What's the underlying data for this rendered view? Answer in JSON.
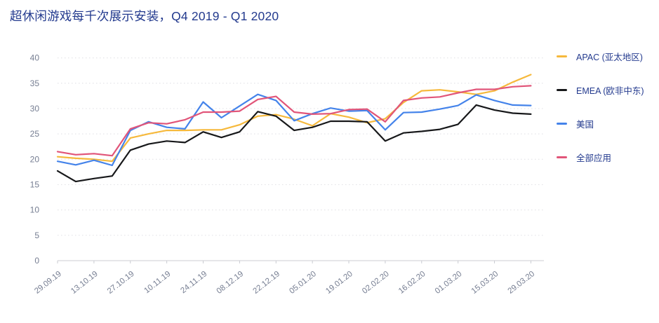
{
  "title": "超休闲游戏每千次展示安装，Q4 2019 - Q1 2020",
  "colors": {
    "title_text": "#233A8E",
    "legend_text": "#233A8E",
    "axis_text": "#767E92",
    "gridline": "#E4E4E8",
    "axis_line": "#D8D8DC"
  },
  "chart_data": {
    "type": "line",
    "title": "超休闲游戏每千次展示安装，Q4 2019 - Q1 2020",
    "x_tick_labels": [
      "29.09.19",
      "13.10.19",
      "27.10.19",
      "10.11.19",
      "24.11.19",
      "08.12.19",
      "22.12.19",
      "05.01.20",
      "19.01.20",
      "02.02.20",
      "16.02.20",
      "01.03.20",
      "15.03.20",
      "29.03.20"
    ],
    "points_per_tick": 2,
    "ylim": [
      0,
      40
    ],
    "y_tick_step": 5,
    "grid": "horizontal-dotted",
    "legend_position": "right",
    "series": [
      {
        "key": "apac",
        "name": "APAC (亚太地区)",
        "color": "#F6B93C",
        "values": [
          20.5,
          20.2,
          20.0,
          19.6,
          24.2,
          25.0,
          25.7,
          25.7,
          25.8,
          25.8,
          26.8,
          28.5,
          28.8,
          27.9,
          26.6,
          29.0,
          28.3,
          27.2,
          28.0,
          31.2,
          33.5,
          33.7,
          33.3,
          32.8,
          33.5,
          35.2,
          36.7
        ]
      },
      {
        "key": "emea",
        "name": "EMEA (欧非中东)",
        "color": "#17181A",
        "values": [
          17.7,
          15.6,
          16.2,
          16.7,
          21.8,
          23.0,
          23.6,
          23.3,
          25.4,
          24.3,
          25.4,
          29.4,
          28.5,
          25.7,
          26.3,
          27.5,
          27.5,
          27.4,
          23.6,
          25.2,
          25.5,
          25.9,
          26.9,
          30.7,
          29.7,
          29.1,
          28.9
        ]
      },
      {
        "key": "us",
        "name": "美国",
        "color": "#4483EA",
        "values": [
          19.6,
          18.9,
          19.8,
          18.8,
          25.7,
          27.4,
          26.3,
          26.0,
          31.3,
          28.2,
          30.5,
          32.8,
          31.6,
          27.6,
          29.0,
          30.1,
          29.5,
          29.6,
          25.8,
          29.2,
          29.3,
          29.9,
          30.6,
          32.7,
          31.6,
          30.7,
          30.6
        ]
      },
      {
        "key": "all-apps",
        "name": "全部应用",
        "color": "#E15579",
        "values": [
          21.5,
          20.9,
          21.1,
          20.7,
          26.0,
          27.2,
          27.0,
          27.8,
          29.3,
          29.3,
          29.5,
          31.8,
          32.4,
          29.3,
          28.9,
          29.0,
          29.8,
          29.9,
          27.4,
          31.6,
          32.1,
          32.3,
          33.1,
          33.8,
          33.8,
          34.3,
          34.5
        ]
      }
    ]
  }
}
